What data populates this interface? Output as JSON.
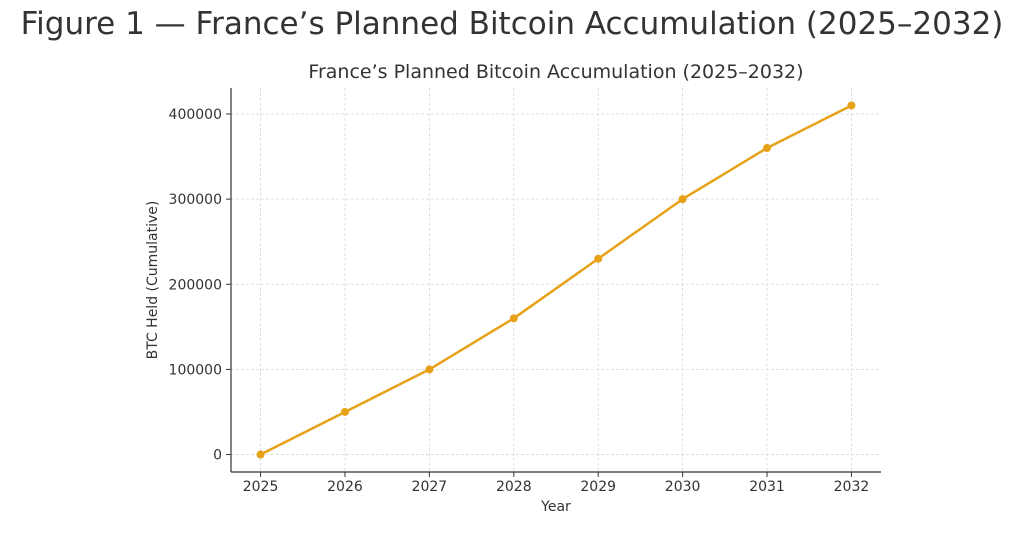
{
  "figure": {
    "title": "Figure 1 — France’s Planned Bitcoin Accumulation (2025–2032)"
  },
  "chart_data": {
    "type": "line",
    "title": "France’s Planned Bitcoin Accumulation (2025–2032)",
    "xlabel": "Year",
    "ylabel": "BTC Held (Cumulative)",
    "x": [
      2025,
      2026,
      2027,
      2028,
      2029,
      2030,
      2031,
      2032
    ],
    "series": [
      {
        "values": [
          0,
          50000,
          100000,
          160000,
          230000,
          300000,
          360000,
          410000
        ],
        "color": "#e6a117"
      }
    ],
    "xticks": [
      "2025",
      "2026",
      "2027",
      "2028",
      "2029",
      "2030",
      "2031",
      "2032"
    ],
    "yticks": [
      0,
      100000,
      200000,
      300000,
      400000
    ],
    "ytick_labels": [
      "0",
      "100000",
      "200000",
      "300000",
      "400000"
    ],
    "xlim": [
      2024.65,
      2032.35
    ],
    "ylim": [
      -20500,
      430500
    ],
    "grid": true,
    "legend": "none",
    "grid_color": "#d9d9d9",
    "axis_color": "#333333"
  }
}
